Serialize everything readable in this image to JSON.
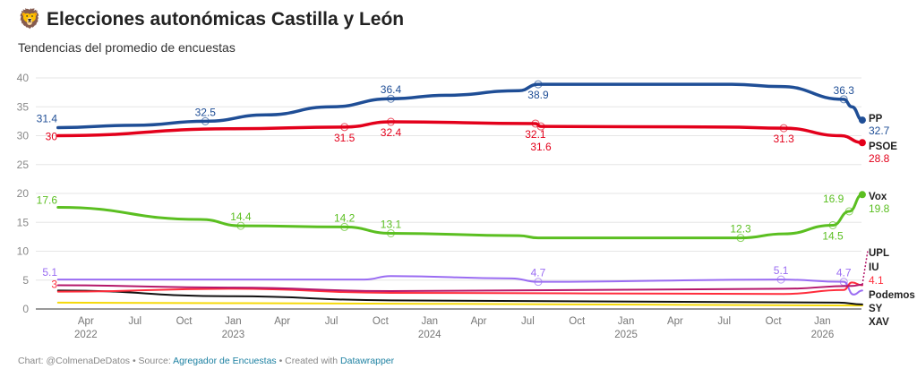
{
  "header": {
    "icon": "lion-emoji",
    "title_emoji": "🦁",
    "title": "Elecciones autonómicas Castilla y León",
    "subtitle": "Tendencias del promedio de encuestas"
  },
  "footer": {
    "prefix": "Chart: @ColmenaDeDatos • Source: ",
    "source": "Agregador de Encuestas",
    "mid": " • Created with ",
    "tool": "Datawrapper"
  },
  "chart_data": {
    "type": "line",
    "ylim": [
      0,
      40
    ],
    "yticks": [
      0,
      5,
      10,
      15,
      20,
      25,
      30,
      35,
      40
    ],
    "xticks": [
      {
        "date": "2022-04",
        "label": "Apr",
        "year": "2022"
      },
      {
        "date": "2022-07",
        "label": "Jul"
      },
      {
        "date": "2022-10",
        "label": "Oct"
      },
      {
        "date": "2023-01",
        "label": "Jan",
        "year": "2023"
      },
      {
        "date": "2023-04",
        "label": "Apr"
      },
      {
        "date": "2023-07",
        "label": "Jul"
      },
      {
        "date": "2023-10",
        "label": "Oct"
      },
      {
        "date": "2024-01",
        "label": "Jan",
        "year": "2024"
      },
      {
        "date": "2024-04",
        "label": "Apr"
      },
      {
        "date": "2024-07",
        "label": "Jul"
      },
      {
        "date": "2024-10",
        "label": "Oct"
      },
      {
        "date": "2025-01",
        "label": "Jan",
        "year": "2025"
      },
      {
        "date": "2025-04",
        "label": "Apr"
      },
      {
        "date": "2025-07",
        "label": "Jul"
      },
      {
        "date": "2025-10",
        "label": "Oct"
      },
      {
        "date": "2026-01",
        "label": "Jan",
        "year": "2026"
      }
    ],
    "grid": true,
    "series": [
      {
        "name": "PP",
        "color": "#1f4e96",
        "width": 3.5,
        "end_value": "32.7",
        "points": [
          [
            "2022-02-10",
            31.4
          ],
          [
            "2022-07-01",
            31.8
          ],
          [
            "2022-11-10",
            32.5
          ],
          [
            "2023-03-01",
            33.6
          ],
          [
            "2023-07-01",
            35.0
          ],
          [
            "2023-10-20",
            36.4
          ],
          [
            "2024-02-01",
            37.0
          ],
          [
            "2024-06-15",
            37.8
          ],
          [
            "2024-07-20",
            38.9
          ],
          [
            "2025-07-15",
            38.9
          ],
          [
            "2025-10-15",
            38.5
          ],
          [
            "2026-02-10",
            36.3
          ],
          [
            "2026-02-25",
            35.0
          ],
          [
            "2026-03-14",
            32.7
          ]
        ],
        "labels": [
          [
            "2022-02-10",
            31.4,
            "31.4",
            "left"
          ],
          [
            "2022-11-10",
            32.5,
            "32.5",
            "above"
          ],
          [
            "2023-10-20",
            36.4,
            "36.4",
            "above"
          ],
          [
            "2024-07-20",
            38.9,
            "38.9",
            "below"
          ],
          [
            "2026-02-10",
            36.3,
            "36.3",
            "above"
          ]
        ]
      },
      {
        "name": "PSOE",
        "color": "#e3001b",
        "width": 3.5,
        "end_value": "28.8",
        "points": [
          [
            "2022-02-10",
            30.0
          ],
          [
            "2023-01-01",
            31.2
          ],
          [
            "2023-07-25",
            31.5
          ],
          [
            "2023-10-20",
            32.4
          ],
          [
            "2024-07-15",
            32.1
          ],
          [
            "2024-07-25",
            31.6
          ],
          [
            "2025-07-01",
            31.5
          ],
          [
            "2025-10-20",
            31.3
          ],
          [
            "2026-02-05",
            30.0
          ],
          [
            "2026-03-14",
            28.8
          ]
        ],
        "labels": [
          [
            "2022-02-10",
            30.0,
            "30",
            "left"
          ],
          [
            "2023-07-25",
            31.5,
            "31.5",
            "below"
          ],
          [
            "2023-10-20",
            32.4,
            "32.4",
            "below"
          ],
          [
            "2024-07-15",
            32.1,
            "32.1",
            "below"
          ],
          [
            "2024-07-25",
            31.6,
            "31.6",
            "below2"
          ],
          [
            "2025-10-20",
            31.3,
            "31.3",
            "below"
          ]
        ]
      },
      {
        "name": "Vox",
        "color": "#5bbf21",
        "width": 3,
        "end_value": "19.8",
        "points": [
          [
            "2022-02-10",
            17.6
          ],
          [
            "2022-11-01",
            15.5
          ],
          [
            "2023-01-15",
            14.4
          ],
          [
            "2023-07-25",
            14.2
          ],
          [
            "2023-10-20",
            13.1
          ],
          [
            "2024-06-15",
            12.7
          ],
          [
            "2024-07-20",
            12.3
          ],
          [
            "2025-08-01",
            12.3
          ],
          [
            "2025-10-20",
            13.0
          ],
          [
            "2026-01-20",
            14.5
          ],
          [
            "2026-02-20",
            16.9
          ],
          [
            "2026-03-14",
            19.8
          ]
        ],
        "labels": [
          [
            "2022-02-10",
            17.6,
            "17.6",
            "left"
          ],
          [
            "2023-01-15",
            14.4,
            "14.4",
            "above"
          ],
          [
            "2023-07-25",
            14.2,
            "14.2",
            "above"
          ],
          [
            "2023-10-20",
            13.1,
            "13.1",
            "above"
          ],
          [
            "2025-08-01",
            12.3,
            "12.3",
            "above"
          ],
          [
            "2026-01-20",
            14.5,
            "14.5",
            "below"
          ],
          [
            "2026-02-20",
            16.9,
            "16.9",
            "below"
          ]
        ]
      },
      {
        "name": "UPL",
        "color": "#b5176a",
        "width": 2,
        "end_value": "",
        "points": [
          [
            "2022-02-10",
            4.1
          ],
          [
            "2023-01-01",
            3.7
          ],
          [
            "2023-10-20",
            3.1
          ],
          [
            "2025-10-20",
            3.5
          ],
          [
            "2026-02-25",
            4.0
          ],
          [
            "2026-03-14",
            4.2
          ]
        ],
        "dotted_end": 10.0,
        "labels": []
      },
      {
        "name": "IU",
        "color": "#ff2d3c",
        "width": 2,
        "end_value": "4.1",
        "points": [
          [
            "2022-02-10",
            3.0
          ],
          [
            "2023-01-01",
            3.5
          ],
          [
            "2023-10-20",
            2.8
          ],
          [
            "2025-10-20",
            2.6
          ],
          [
            "2026-02-10",
            3.3
          ],
          [
            "2026-02-25",
            4.6
          ],
          [
            "2026-03-14",
            4.1
          ]
        ],
        "labels": [
          [
            "2022-02-10",
            3.0,
            "3",
            "left"
          ]
        ]
      },
      {
        "name": "Podemos",
        "color": "#9a6cf2",
        "width": 2,
        "end_value": "",
        "points": [
          [
            "2022-02-10",
            5.1
          ],
          [
            "2023-09-01",
            5.1
          ],
          [
            "2023-10-20",
            5.7
          ],
          [
            "2024-06-01",
            5.3
          ],
          [
            "2024-07-20",
            4.7
          ],
          [
            "2025-10-15",
            5.1
          ],
          [
            "2026-02-10",
            4.7
          ],
          [
            "2026-02-28",
            2.5
          ],
          [
            "2026-03-14",
            3.2
          ]
        ],
        "labels": [
          [
            "2022-02-10",
            5.1,
            "5.1",
            "left"
          ],
          [
            "2024-07-20",
            4.7,
            "4.7",
            "above"
          ],
          [
            "2025-10-15",
            5.1,
            "5.1",
            "above"
          ],
          [
            "2026-02-10",
            4.7,
            "4.7",
            "above"
          ]
        ]
      },
      {
        "name": "SY",
        "color": "#111111",
        "width": 2,
        "end_value": "",
        "points": [
          [
            "2022-02-10",
            3.2
          ],
          [
            "2023-01-01",
            2.2
          ],
          [
            "2023-10-20",
            1.5
          ],
          [
            "2026-02-01",
            1.1
          ],
          [
            "2026-03-14",
            0.8
          ]
        ],
        "labels": []
      },
      {
        "name": "XAV",
        "color": "#f5d90a",
        "width": 2,
        "end_value": "",
        "points": [
          [
            "2022-02-10",
            1.1
          ],
          [
            "2024-01-01",
            0.9
          ],
          [
            "2026-03-14",
            0.6
          ]
        ],
        "labels": []
      }
    ]
  }
}
